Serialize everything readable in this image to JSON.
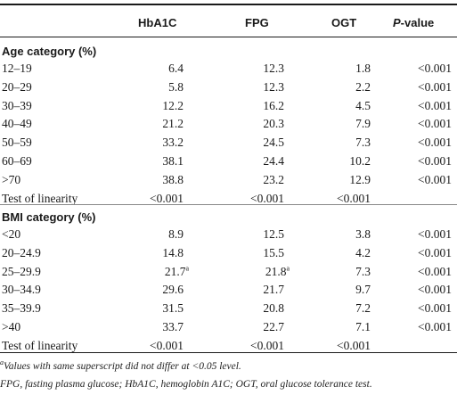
{
  "table": {
    "headers": {
      "hba1c": "HbA1C",
      "fpg": "FPG",
      "ogt": "OGT",
      "p_italic": "P",
      "p_rest": "-value"
    },
    "sections": [
      {
        "title": "Age category (%)",
        "rows": [
          {
            "label": "12–19",
            "hba1c": "6.4",
            "fpg": "12.3",
            "ogt": "1.8",
            "p": "<0.001"
          },
          {
            "label": "20–29",
            "hba1c": "5.8",
            "fpg": "12.3",
            "ogt": "2.2",
            "p": "<0.001"
          },
          {
            "label": "30–39",
            "hba1c": "12.2",
            "fpg": "16.2",
            "ogt": "4.5",
            "p": "<0.001"
          },
          {
            "label": "40–49",
            "hba1c": "21.2",
            "fpg": "20.3",
            "ogt": "7.9",
            "p": "<0.001"
          },
          {
            "label": "50–59",
            "hba1c": "33.2",
            "fpg": "24.5",
            "ogt": "7.3",
            "p": "<0.001"
          },
          {
            "label": "60–69",
            "hba1c": "38.1",
            "fpg": "24.4",
            "ogt": "10.2",
            "p": "<0.001"
          },
          {
            "label": ">70",
            "hba1c": "38.8",
            "fpg": "23.2",
            "ogt": "12.9",
            "p": "<0.001"
          },
          {
            "label": "Test of linearity",
            "hba1c": "<0.001",
            "fpg": "<0.001",
            "ogt": "<0.001",
            "p": ""
          }
        ]
      },
      {
        "title": "BMI category (%)",
        "rows": [
          {
            "label": "<20",
            "hba1c": "8.9",
            "fpg": "12.5",
            "ogt": "3.8",
            "p": "<0.001"
          },
          {
            "label": "20–24.9",
            "hba1c": "14.8",
            "fpg": "15.5",
            "ogt": "4.2",
            "p": "<0.001"
          },
          {
            "label": "25–29.9",
            "hba1c": "21.7",
            "hba1c_sup": "a",
            "fpg": "21.8",
            "fpg_sup": "a",
            "ogt": "7.3",
            "p": "<0.001"
          },
          {
            "label": "30–34.9",
            "hba1c": "29.6",
            "fpg": "21.7",
            "ogt": "9.7",
            "p": "<0.001"
          },
          {
            "label": "35–39.9",
            "hba1c": "31.5",
            "fpg": "20.8",
            "ogt": "7.2",
            "p": "<0.001"
          },
          {
            "label": ">40",
            "hba1c": "33.7",
            "fpg": "22.7",
            "ogt": "7.1",
            "p": "<0.001"
          },
          {
            "label": "Test of linearity",
            "hba1c": "<0.001",
            "fpg": "<0.001",
            "ogt": "<0.001",
            "p": ""
          }
        ]
      }
    ]
  },
  "footnotes": {
    "note_a_sup": "a",
    "note_a": "Values with same superscript did not differ at <0.05 level.",
    "abbreviations": "FPG, fasting plasma glucose; HbA1C, hemoglobin A1C; OGT, oral glucose tolerance test."
  }
}
